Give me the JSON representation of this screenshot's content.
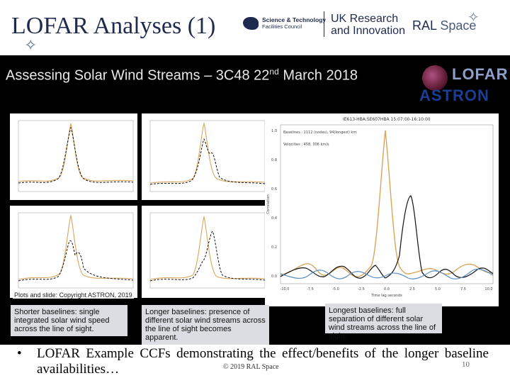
{
  "slide": {
    "title": "LOFAR Analyses (1)",
    "title_decoration": "✧",
    "footer": "© 2019 RAL Space",
    "page_number": "10"
  },
  "logos": {
    "stfc_line1": "Science & Technology",
    "stfc_line2": "Facilities Council",
    "ukri_line1": "UK Research",
    "ukri_line2": "and Innovation",
    "ral_word1": "RAL",
    "ral_word2": "Space",
    "ral_decoration": "✧",
    "lofar": "LOFAR",
    "astron": "ASTRON"
  },
  "panel": {
    "title": "Assessing Solar Wind Streams – 3C48 22",
    "title_sup": "nd",
    "title_tail": " March 2018",
    "credit": "Plots and slide: Copyright ASTRON, 2019"
  },
  "large_plot": {
    "title": "IE613-HBA:SE607HBA  15:07:00-16:10:00",
    "baseline_label": "Baselines : 1112 (nodes), 94(longest) km",
    "velocity_label": "Velocities : 458, 306 km/s",
    "xlabel": "Time lag seconds",
    "ylabel": "Correlation",
    "xticks": [
      "-10.0",
      "-7.5",
      "-5.0",
      "-2.5",
      "0.0",
      "2.5",
      "5.0",
      "7.5",
      "10.0"
    ],
    "yticks": [
      "1.0",
      "0.8",
      "0.6",
      "0.4",
      "0.2",
      "0.0"
    ]
  },
  "captions": {
    "shorter": "Shorter baselines: single integrated solar wind speed across the line of sight.",
    "longer": "Longer baselines: presence of different solar wind streams across the line of sight becomes apparent.",
    "longest": "Longest baselines: full separation of different solar wind streams across the line of sight."
  },
  "bullet": {
    "mark": "•",
    "text": "LOFAR Example CCFs demonstrating the effect/benefits of the longer baseline availabilities…"
  },
  "colors": {
    "title": "#1f2a4f",
    "panel_bg": "#000000",
    "caption_bg": "#dcdde2",
    "curve_orange": "#d9a55a",
    "curve_black": "#111111",
    "curve_blue": "#5b8fc4"
  }
}
